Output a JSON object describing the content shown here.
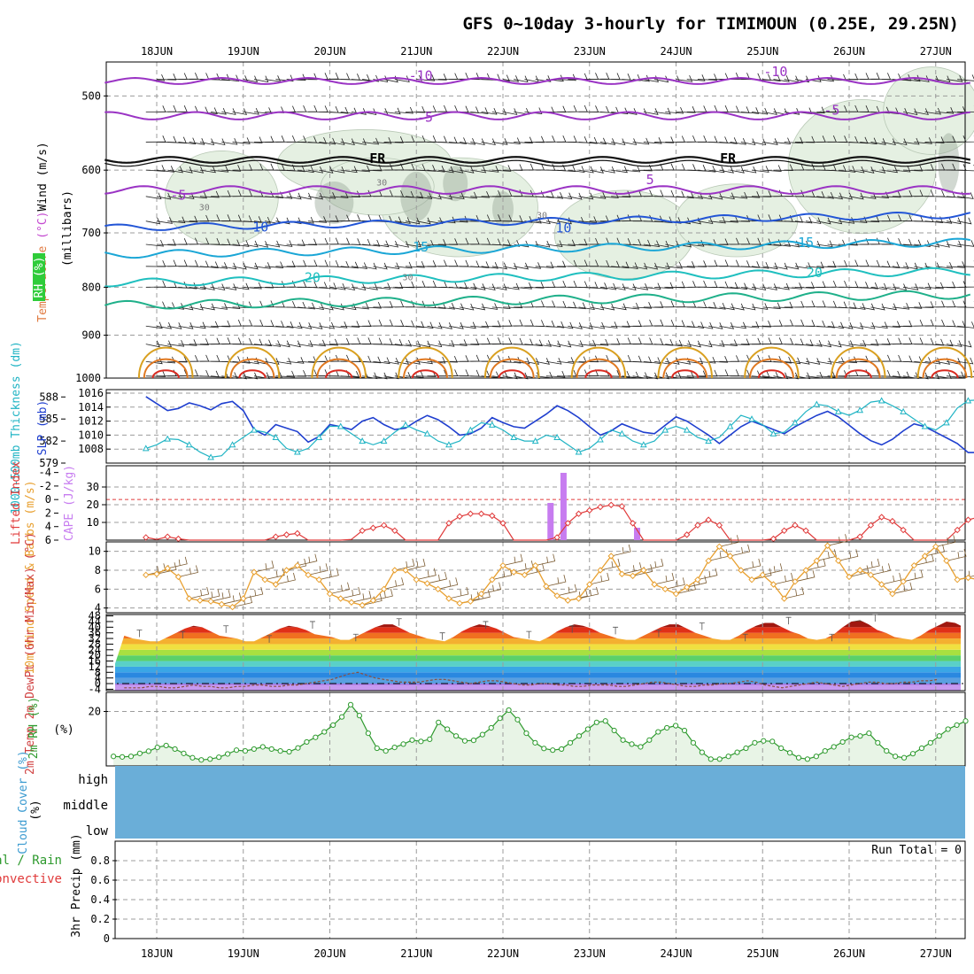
{
  "title": "GFS 0~10day 3-hourly for TIMIMOUN (0.25E, 29.25N)",
  "colors": {
    "grid": "#9c9c9c",
    "rh_fill": "#e5f0e2",
    "rh_dark": "#9aa89a",
    "barb": "#222222",
    "slp": "#1f3fcf",
    "thickness": "#20b4c4",
    "lifted_index": "#e03a3a",
    "cape": "#c77cf0",
    "wind10": "#e8a030",
    "barb10": "#7a5a30",
    "rh2m": "#2e9a2e",
    "rh2m_fill": "#e8f4e6",
    "cloud": "#6aaed8"
  },
  "chart_data": [
    {
      "type": "line",
      "name": "upper_air_cross_section",
      "x_dates": [
        "18JUN",
        "19JUN",
        "20JUN",
        "21JUN",
        "22JUN",
        "23JUN",
        "24JUN",
        "25JUN",
        "26JUN",
        "27JUN"
      ],
      "ylabel_parts": [
        "Wind",
        "(m/s)",
        "Temperature",
        "(°C)",
        "RH",
        "(%)",
        "(millibars)"
      ],
      "y_ticks": [
        "500",
        "600",
        "700",
        "800",
        "900",
        "1000"
      ],
      "ylim": [
        460,
        1000
      ],
      "y_scale": "log-pressure",
      "isotherm_labels": [
        {
          "text": "-10",
          "x": 3.05,
          "y": 476
        },
        {
          "text": "-10",
          "x": 7.15,
          "y": 471
        },
        {
          "text": "-5",
          "x": 3.1,
          "y": 527
        },
        {
          "text": "-5",
          "x": 7.8,
          "y": 518
        },
        {
          "text": "FR",
          "x": 2.55,
          "y": 583
        },
        {
          "text": "FR",
          "x": 6.6,
          "y": 583
        },
        {
          "text": "5",
          "x": 5.7,
          "y": 614
        },
        {
          "text": "-5",
          "x": 0.25,
          "y": 638
        },
        {
          "text": "10",
          "x": 1.2,
          "y": 690
        },
        {
          "text": "10",
          "x": 4.7,
          "y": 692
        },
        {
          "text": "15",
          "x": 3.05,
          "y": 725
        },
        {
          "text": "15",
          "x": 7.5,
          "y": 717
        },
        {
          "text": "20",
          "x": 1.8,
          "y": 781
        },
        {
          "text": "20",
          "x": 7.6,
          "y": 772
        },
        {
          "text": "30",
          "x": 0.55,
          "y": 655
        },
        {
          "text": "30",
          "x": 2.6,
          "y": 616
        },
        {
          "text": "30",
          "x": 4.45,
          "y": 668
        },
        {
          "text": "30",
          "x": 2.9,
          "y": 778
        }
      ]
    },
    {
      "type": "line",
      "name": "slp_thickness",
      "ylabel_left": "1000-500mb Thickness (dm)",
      "ylabel_right": "SLP (mb)",
      "thickness_ticks": [
        "588",
        "585",
        "582",
        "579"
      ],
      "slp_ticks": [
        "1016",
        "1014",
        "1012",
        "1010",
        "1008"
      ],
      "thickness_ylim": [
        579,
        589
      ],
      "slp_ylim": [
        1006,
        1016.5
      ],
      "slp": [
        1015.5,
        1014.5,
        1013.5,
        1013.8,
        1014.6,
        1014.2,
        1013.6,
        1014.5,
        1014.8,
        1013.5,
        1010.8,
        1010.0,
        1011.5,
        1011.0,
        1010.5,
        1009.0,
        1009.8,
        1011.5,
        1011.2,
        1010.8,
        1012.0,
        1012.5,
        1011.5,
        1010.8,
        1011.0,
        1012.0,
        1012.8,
        1012.2,
        1011.2,
        1010.0,
        1010.2,
        1011.0,
        1012.5,
        1011.8,
        1011.2,
        1011.0,
        1012.0,
        1013.0,
        1014.2,
        1013.5,
        1012.5,
        1011.2,
        1010.0,
        1010.6,
        1011.6,
        1011.0,
        1010.4,
        1010.2,
        1011.4,
        1012.6,
        1012.0,
        1011.0,
        1010.0,
        1008.8,
        1010.0,
        1011.2,
        1012.0,
        1011.4,
        1010.8,
        1010.2,
        1011.2,
        1012.0,
        1012.8,
        1013.4,
        1012.6,
        1011.4,
        1010.2,
        1009.2,
        1008.6,
        1009.4,
        1010.6,
        1011.6,
        1011.2,
        1010.4,
        1009.6,
        1008.8,
        1007.5,
        1007.5,
        1009.2,
        1011.0,
        1011.8,
        1011.4,
        1010.6,
        1010.0,
        1008.2,
        1007.5,
        1008.8,
        1010.0,
        1011.4,
        1012.0,
        1012.2,
        1013.3
      ],
      "thickness": [
        581.0,
        581.5,
        582.3,
        582.2,
        581.5,
        580.5,
        579.8,
        580.0,
        581.5,
        582.5,
        583.5,
        583.2,
        582.5,
        581.0,
        580.5,
        581.0,
        582.5,
        584.0,
        584.0,
        583.0,
        582.0,
        581.5,
        582.0,
        583.2,
        584.2,
        583.5,
        583.0,
        582.0,
        581.5,
        582.0,
        583.5,
        584.5,
        584.2,
        583.5,
        582.5,
        582.0,
        582.0,
        582.8,
        582.5,
        581.5,
        580.5,
        581.0,
        582.2,
        583.5,
        583.0,
        582.0,
        581.5,
        582.0,
        583.5,
        584.0,
        583.5,
        582.5,
        582.0,
        582.5,
        584.0,
        585.5,
        585.0,
        584.2,
        583.0,
        583.2,
        584.5,
        586.0,
        587.0,
        586.8,
        586.0,
        585.5,
        586.2,
        587.3,
        587.5,
        586.8,
        586.0,
        585.0,
        584.0,
        583.5,
        584.5,
        586.5,
        587.5,
        587.6,
        587.0,
        586.0,
        585.0,
        584.0,
        585.0,
        586.5,
        587.5,
        587.2,
        586.0,
        584.8,
        583.0,
        583.5,
        584.0,
        584.0
      ]
    },
    {
      "type": "bar",
      "name": "lifted_index_cape",
      "ylabel_left": "Lifted Index",
      "ylabel_right": "CAPE (J/kg)",
      "li_ticks": [
        "-4",
        "-2",
        "0",
        "2",
        "4",
        "6"
      ],
      "cape_ticks": [
        "30",
        "20",
        "10"
      ],
      "li_ylim": [
        6,
        -5
      ],
      "cape_ylim": [
        0,
        42
      ],
      "lifted_index": [
        5.6,
        5.9,
        5.5,
        5.8,
        6.4,
        6.6,
        6.4,
        6.2,
        6.2,
        6.5,
        6.6,
        6.5,
        5.5,
        5.2,
        5.0,
        6.2,
        6.7,
        6.9,
        6.5,
        5.9,
        4.6,
        4.2,
        3.8,
        4.6,
        6.2,
        6.7,
        6.6,
        6.2,
        3.5,
        2.5,
        2.1,
        2.1,
        2.4,
        3.5,
        6.2,
        6.7,
        6.8,
        6.5,
        5.6,
        3.5,
        2.1,
        1.6,
        1.1,
        0.8,
        1.0,
        3.5,
        6.3,
        6.8,
        6.5,
        6.0,
        5.2,
        3.8,
        3.0,
        3.8,
        6.3,
        6.9,
        6.8,
        6.4,
        5.8,
        4.6,
        3.8,
        4.6,
        6.6,
        6.8,
        6.6,
        6.2,
        5.5,
        3.8,
        2.6,
        3.2,
        4.5,
        6.4,
        6.9,
        6.6,
        6.3,
        4.5,
        3.0,
        2.6,
        2.6,
        3.4,
        5.0,
        5.6,
        5.5,
        5.4,
        4.8,
        3.4,
        1.8,
        1.2,
        1.8,
        3.8,
        4.6,
        4.4
      ],
      "cape": [
        {
          "day": 4.55,
          "value": 21
        },
        {
          "day": 4.7,
          "value": 38
        },
        {
          "day": 5.55,
          "value": 7
        },
        {
          "day": 9.5,
          "value": 1.5
        }
      ]
    },
    {
      "type": "line",
      "name": "wind10m",
      "ylabel": "10m Wind Speed & Barbs (m/s)",
      "y_ticks": [
        "10",
        "8",
        "6",
        "4"
      ],
      "ylim": [
        3.5,
        11
      ],
      "values": [
        7.5,
        7.6,
        8.2,
        7.3,
        5.0,
        4.8,
        4.7,
        4.4,
        4.1,
        5.0,
        7.8,
        7.0,
        6.5,
        8.0,
        8.5,
        7.5,
        7.0,
        5.5,
        5.0,
        4.6,
        4.3,
        4.8,
        6.0,
        8.0,
        8.0,
        7.0,
        6.6,
        6.0,
        5.0,
        4.5,
        4.7,
        5.5,
        7.0,
        8.5,
        7.8,
        7.5,
        8.5,
        6.3,
        5.3,
        4.8,
        5.0,
        6.5,
        8.0,
        9.5,
        7.6,
        7.4,
        8.0,
        6.5,
        6.0,
        5.5,
        6.2,
        7.0,
        9.0,
        10.5,
        9.5,
        8.0,
        7.0,
        7.5,
        6.5,
        5.0,
        6.8,
        8.0,
        9.0,
        10.6,
        9.0,
        7.3,
        8.0,
        7.5,
        6.5,
        5.5,
        6.8,
        8.5,
        9.5,
        10.5,
        9.0,
        7.0,
        7.2,
        7.0,
        5.5,
        6.5,
        8.8,
        10.0,
        8.5,
        6.5,
        8.0,
        7.5,
        6.5,
        5.0,
        6.5,
        7.0,
        7.8,
        8.0,
        6.5,
        5.5,
        5.2,
        5.0
      ]
    },
    {
      "type": "area",
      "name": "temp2m_dewpoint",
      "ylabel": "2m Temp 2m DewPt (6hr Min/Max) (°C)",
      "y_ticks": [
        "48",
        "44",
        "40",
        "36",
        "32",
        "28",
        "24",
        "20",
        "16",
        "12",
        "8",
        "4",
        "0",
        "-4"
      ],
      "ylim": [
        -5,
        49
      ],
      "temp": [
        34,
        32,
        31,
        30,
        30,
        33,
        36,
        39,
        41,
        40,
        37,
        34,
        33,
        32,
        30,
        30,
        33,
        36,
        39,
        41,
        40,
        38,
        35,
        34,
        33,
        31,
        31,
        34,
        37,
        40,
        42,
        42,
        39,
        36,
        34,
        32,
        31,
        30,
        33,
        37,
        40,
        42,
        41,
        39,
        36,
        33,
        32,
        31,
        30,
        33,
        37,
        40,
        42,
        41,
        39,
        36,
        34,
        32,
        31,
        31,
        34,
        37,
        40,
        42,
        42,
        39,
        36,
        34,
        32,
        31,
        31,
        34,
        38,
        41,
        43,
        43,
        40,
        37,
        35,
        32,
        31,
        32,
        35,
        40,
        44,
        45,
        42,
        38,
        36,
        33,
        32,
        31,
        34,
        38,
        41,
        44,
        43,
        40,
        37,
        35,
        34,
        33
      ],
      "dewpoint": [
        -3,
        -3,
        -3,
        -2,
        -2,
        -3,
        -3,
        -2,
        -1,
        -2,
        -2,
        -3,
        -3,
        -2,
        -2,
        -1,
        -1,
        -2,
        -2,
        -1,
        -1,
        0,
        1,
        2,
        3,
        5,
        7,
        8,
        6,
        4,
        3,
        2,
        1,
        1,
        1,
        2,
        3,
        3,
        2,
        1,
        0,
        1,
        2,
        2,
        1,
        0,
        -1,
        -1,
        0,
        0,
        -1,
        -1,
        -2,
        -2,
        -1,
        -1,
        -1,
        -2,
        -2,
        -1,
        0,
        1,
        1,
        0,
        -1,
        -2,
        -2,
        -1,
        -1,
        0,
        0,
        1,
        2,
        1,
        -1,
        -2,
        -3,
        -2,
        -1,
        0,
        1,
        0,
        -1,
        -2,
        -1,
        0,
        1,
        1,
        0,
        0,
        1,
        1,
        2,
        2,
        3
      ]
    },
    {
      "type": "area",
      "name": "rh2m",
      "ylabel": "2m RH (%)",
      "y_ticks": [
        "20"
      ],
      "ylim": [
        0,
        27
      ],
      "values": [
        3.5,
        3.3,
        3.5,
        4.6,
        5.4,
        6.8,
        7.5,
        6.2,
        4.6,
        3.0,
        2.2,
        2.5,
        3.2,
        4.4,
        5.8,
        5.5,
        6.2,
        7.0,
        6.2,
        5.5,
        5.2,
        6.6,
        8.8,
        10.5,
        12.5,
        15.0,
        18.0,
        22.5,
        18.5,
        12.0,
        6.5,
        5.5,
        6.8,
        8.0,
        9.5,
        9.0,
        9.8,
        16.0,
        13.5,
        11.0,
        9.2,
        9.4,
        11.5,
        14.0,
        17.5,
        20.5,
        17.0,
        12.0,
        8.5,
        6.4,
        5.8,
        6.2,
        8.5,
        11.0,
        13.5,
        16.0,
        16.5,
        13.0,
        9.5,
        8.0,
        7.0,
        9.5,
        12.5,
        14.0,
        14.8,
        13.0,
        8.5,
        5.0,
        2.5,
        2.5,
        3.5,
        5.0,
        6.5,
        8.5,
        9.2,
        9.0,
        6.5,
        4.8,
        3.0,
        2.5,
        3.5,
        5.5,
        7.0,
        8.8,
        10.5,
        11.0,
        12.0,
        8.5,
        5.5,
        3.5,
        3.0,
        4.5,
        6.5,
        8.5,
        11.0,
        13.5,
        15.0,
        16.5
      ]
    },
    {
      "type": "area",
      "name": "cloud_cover",
      "ylabel": "Cloud Cover (%)",
      "levels": [
        "high",
        "middle",
        "low"
      ],
      "coverage": [
        100,
        100,
        100
      ]
    },
    {
      "type": "bar",
      "name": "precip",
      "ylabel_left": "Total / Rain",
      "ylabel_left2": "Convective",
      "ylabel": "3hr Precip (mm)",
      "y_ticks": [
        "0.8",
        "0.6",
        "0.4",
        "0.2",
        "0"
      ],
      "ylim": [
        0,
        1
      ],
      "run_total": "Run Total = 0",
      "values": [
        0,
        0,
        0,
        0,
        0,
        0,
        0,
        0,
        0,
        0
      ]
    }
  ]
}
